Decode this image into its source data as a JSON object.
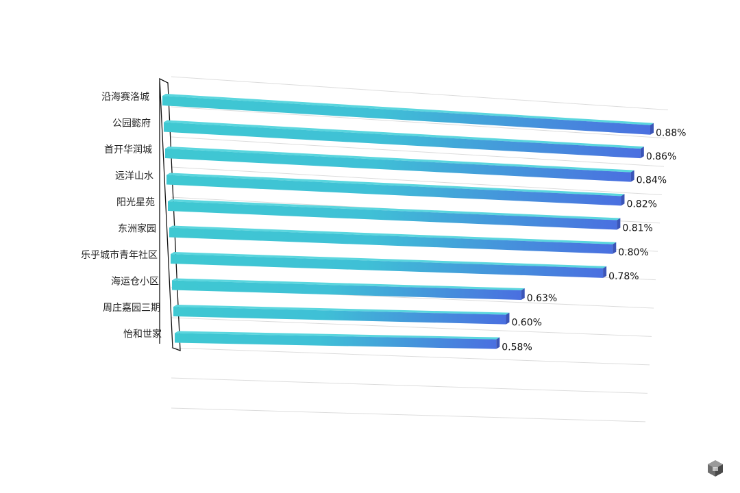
{
  "chart_data": {
    "type": "bar",
    "orientation": "horizontal",
    "style": "3d",
    "categories": [
      "沿海赛洛城",
      "公园懿府",
      "首开华润城",
      "远洋山水",
      "阳光星苑",
      "东洲家园",
      "乐乎城市青年社区",
      "海运仓小区",
      "周庄嘉园三期",
      "怡和世家"
    ],
    "values": [
      0.88,
      0.86,
      0.84,
      0.82,
      0.81,
      0.8,
      0.78,
      0.63,
      0.6,
      0.58
    ],
    "value_labels": [
      "0.88%",
      "0.86%",
      "0.84%",
      "0.82%",
      "0.81%",
      "0.80%",
      "0.78%",
      "0.63%",
      "0.60%",
      "0.58%"
    ],
    "unit": "%",
    "title": "",
    "xlabel": "",
    "ylabel": "",
    "xlim": [
      0,
      0.88
    ],
    "grid": true,
    "legend": false,
    "colors": {
      "bar_start": "#3fc8d2",
      "bar_end": "#4a6fe0",
      "bar_top": "#5ad6de",
      "bar_side": "#3b55b8"
    }
  },
  "watermark": {
    "icon": "cube-logo-icon"
  }
}
